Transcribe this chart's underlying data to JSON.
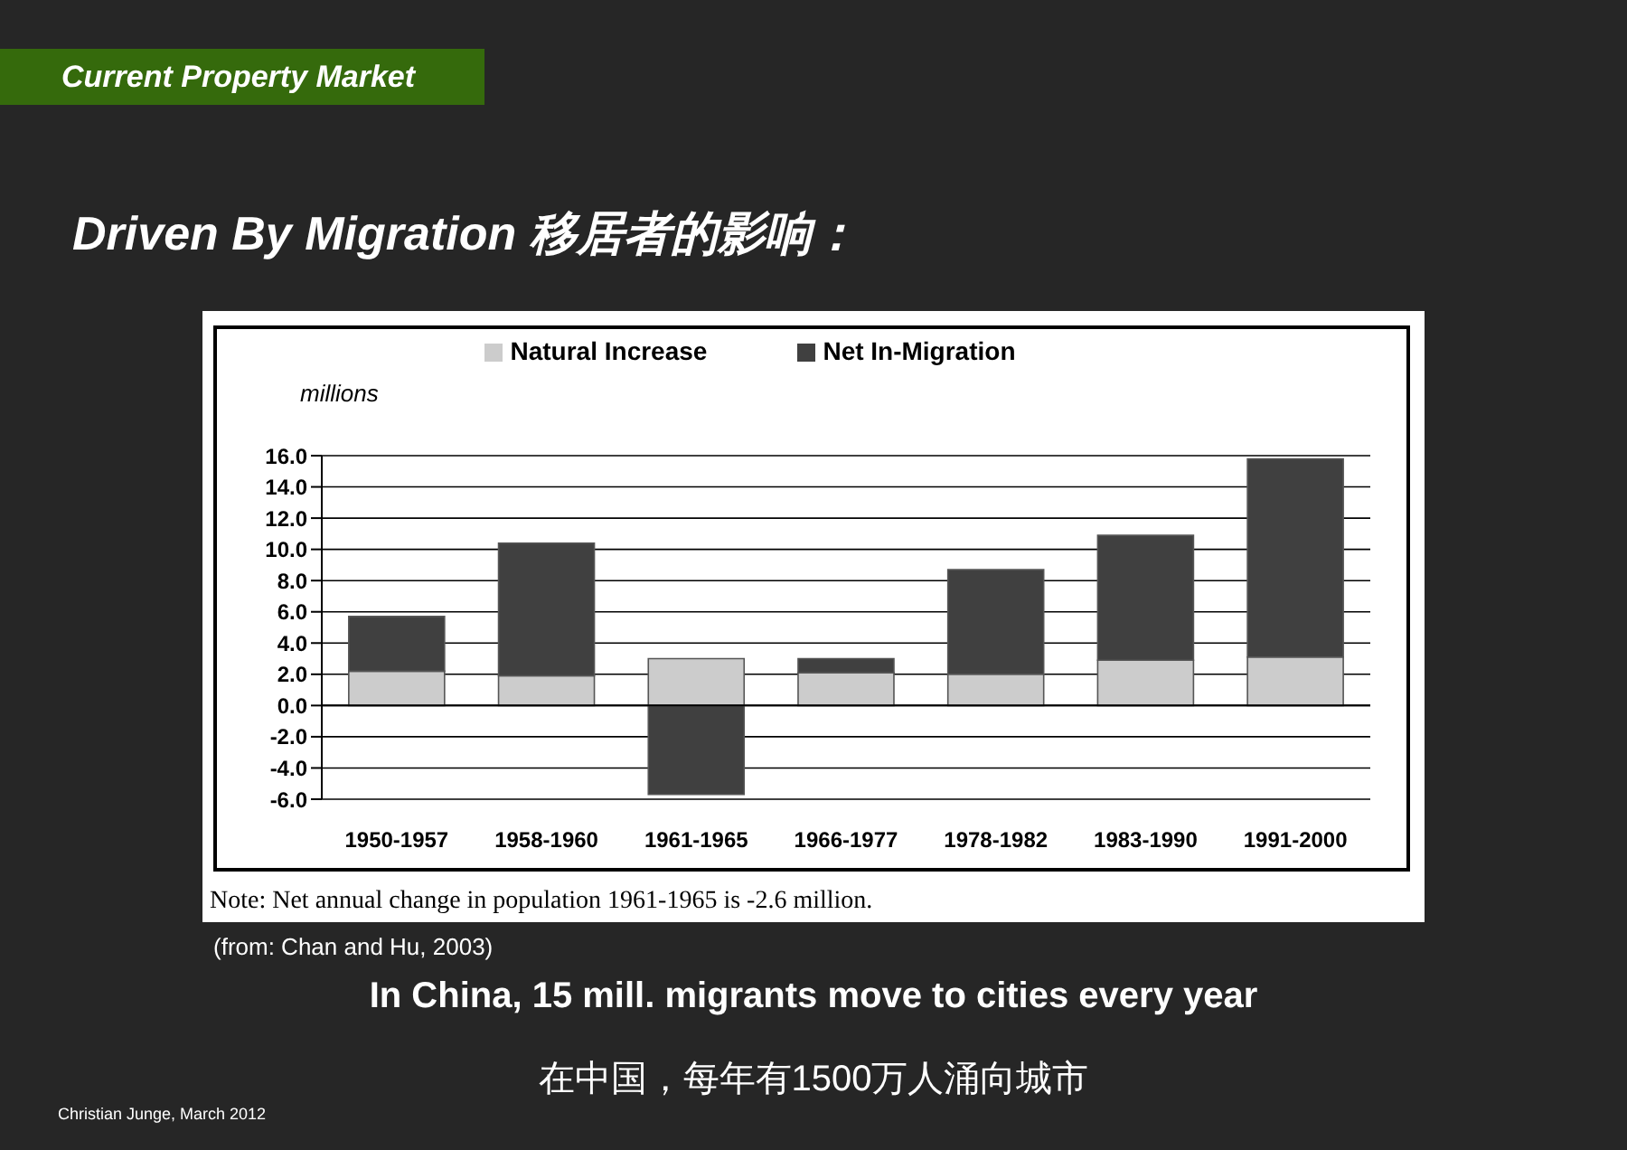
{
  "chart_data": {
    "type": "bar",
    "title": "Driven By Migration 移居者的影响：",
    "subtitle": "Current Property Market",
    "ylabel": "millions",
    "categories": [
      "1950-1957",
      "1958-1960",
      "1961-1965",
      "1966-1977",
      "1978-1982",
      "1983-1990",
      "1991-2000"
    ],
    "series": [
      {
        "name": "Natural Increase",
        "color": "#cccccc",
        "values": [
          2.2,
          1.9,
          3.0,
          2.1,
          2.0,
          2.9,
          3.1
        ]
      },
      {
        "name": "Net In-Migration",
        "color": "#404040",
        "values": [
          3.5,
          8.5,
          -5.7,
          0.9,
          6.7,
          8.0,
          12.7
        ]
      }
    ],
    "stacked": true,
    "ylim": [
      -6,
      16
    ],
    "yticks": [
      {
        "value": -6,
        "label": "-6.0"
      },
      {
        "value": -4,
        "label": "-4.0"
      },
      {
        "value": -2,
        "label": "-2.0"
      },
      {
        "value": 0,
        "label": "0.0"
      },
      {
        "value": 2,
        "label": "2.0"
      },
      {
        "value": 4,
        "label": "4.0"
      },
      {
        "value": 6,
        "label": "6.0"
      },
      {
        "value": 8,
        "label": "8.0"
      },
      {
        "value": 10,
        "label": "10.0"
      },
      {
        "value": 12,
        "label": "12.0"
      },
      {
        "value": 14,
        "label": "14.0"
      },
      {
        "value": 16,
        "label": "16.0"
      }
    ],
    "grid": "y",
    "legend": "top",
    "annotations": [
      "Note: Net annual change in population 1961-1965 is -2.6 million.",
      "(from: Chan and Hu, 2003)",
      "In China, 15 mill. migrants move to cities every year",
      "在中国，每年有1500万人涌向城市",
      "Christian Junge, March 2012"
    ]
  }
}
